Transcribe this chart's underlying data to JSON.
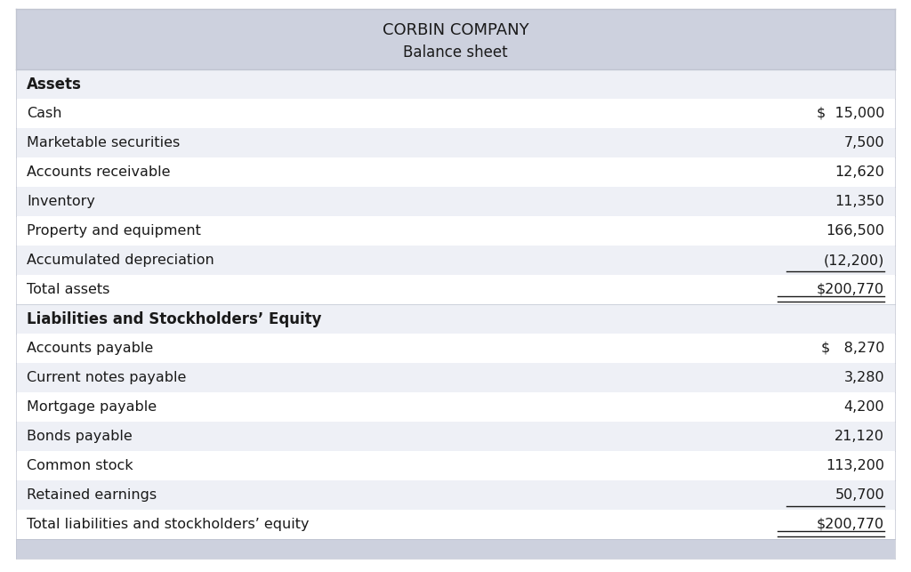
{
  "title_line1": "CORBIN COMPANY",
  "title_line2": "Balance sheet",
  "header_bg": "#cdd1de",
  "row_bg_light": "#eef0f6",
  "row_bg_white": "#ffffff",
  "text_color": "#1a1a1a",
  "fig_bg": "#ffffff",
  "border_color": "#c0c4d0",
  "bottom_strip_color": "#cdd1de",
  "sections": [
    {
      "header": "Assets",
      "header_bold": true,
      "bg": "#eef0f6",
      "rows": [
        {
          "label": "Cash",
          "value": "$  15,000",
          "underline": false,
          "bold": false,
          "bg": "#ffffff"
        },
        {
          "label": "Marketable securities",
          "value": "7,500",
          "underline": false,
          "bold": false,
          "bg": "#eef0f6"
        },
        {
          "label": "Accounts receivable",
          "value": "12,620",
          "underline": false,
          "bold": false,
          "bg": "#ffffff"
        },
        {
          "label": "Inventory",
          "value": "11,350",
          "underline": false,
          "bold": false,
          "bg": "#eef0f6"
        },
        {
          "label": "Property and equipment",
          "value": "166,500",
          "underline": false,
          "bold": false,
          "bg": "#ffffff"
        },
        {
          "label": "Accumulated depreciation",
          "value": "(12,200)",
          "underline": true,
          "bold": false,
          "bg": "#eef0f6"
        },
        {
          "label": "Total assets",
          "value": "$200,770",
          "underline": false,
          "bold": false,
          "total": true,
          "bg": "#ffffff"
        }
      ]
    },
    {
      "header": "Liabilities and Stockholders’ Equity",
      "header_bold": true,
      "bg": "#eef0f6",
      "rows": [
        {
          "label": "Accounts payable",
          "value": "$   8,270",
          "underline": false,
          "bold": false,
          "bg": "#ffffff"
        },
        {
          "label": "Current notes payable",
          "value": "3,280",
          "underline": false,
          "bold": false,
          "bg": "#eef0f6"
        },
        {
          "label": "Mortgage payable",
          "value": "4,200",
          "underline": false,
          "bold": false,
          "bg": "#ffffff"
        },
        {
          "label": "Bonds payable",
          "value": "21,120",
          "underline": false,
          "bold": false,
          "bg": "#eef0f6"
        },
        {
          "label": "Common stock",
          "value": "113,200",
          "underline": false,
          "bold": false,
          "bg": "#ffffff"
        },
        {
          "label": "Retained earnings",
          "value": "50,700",
          "underline": true,
          "bold": false,
          "bg": "#eef0f6"
        },
        {
          "label": "Total liabilities and stockholders’ equity",
          "value": "$200,770",
          "underline": false,
          "bold": false,
          "total": true,
          "bg": "#ffffff"
        }
      ]
    }
  ],
  "figsize": [
    10.24,
    6.43
  ],
  "dpi": 100
}
